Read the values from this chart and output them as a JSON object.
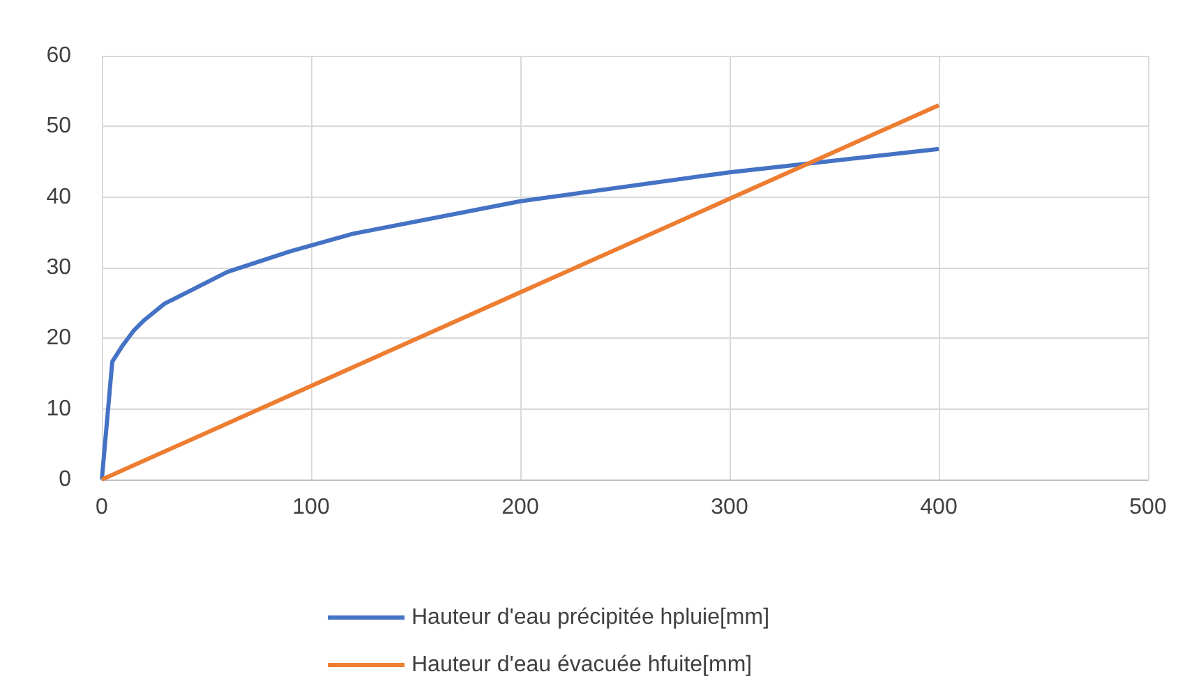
{
  "chart_data": {
    "type": "line",
    "x": [
      0,
      5,
      10,
      15,
      20,
      30,
      60,
      90,
      120,
      200,
      300,
      400
    ],
    "series": [
      {
        "name": "Hauteur d'eau précipitée hpluie[mm]",
        "color": "#4472c4",
        "values": [
          0,
          16.7,
          19,
          21,
          22.5,
          24.9,
          29.4,
          32.3,
          34.8,
          39.4,
          43.5,
          46.8
        ]
      },
      {
        "name": "Hauteur d'eau évacuée hfuite[mm]",
        "color": "#ed7d31",
        "x": [
          0,
          400
        ],
        "values": [
          0,
          53
        ]
      }
    ],
    "xlim": [
      0,
      500
    ],
    "xticks": [
      0,
      100,
      200,
      300,
      400,
      500
    ],
    "ylim": [
      0,
      60
    ],
    "yticks": [
      0,
      10,
      20,
      30,
      40,
      50,
      60
    ],
    "grid": true,
    "legend": "bottom",
    "marker": "none",
    "line_style": "solid"
  }
}
